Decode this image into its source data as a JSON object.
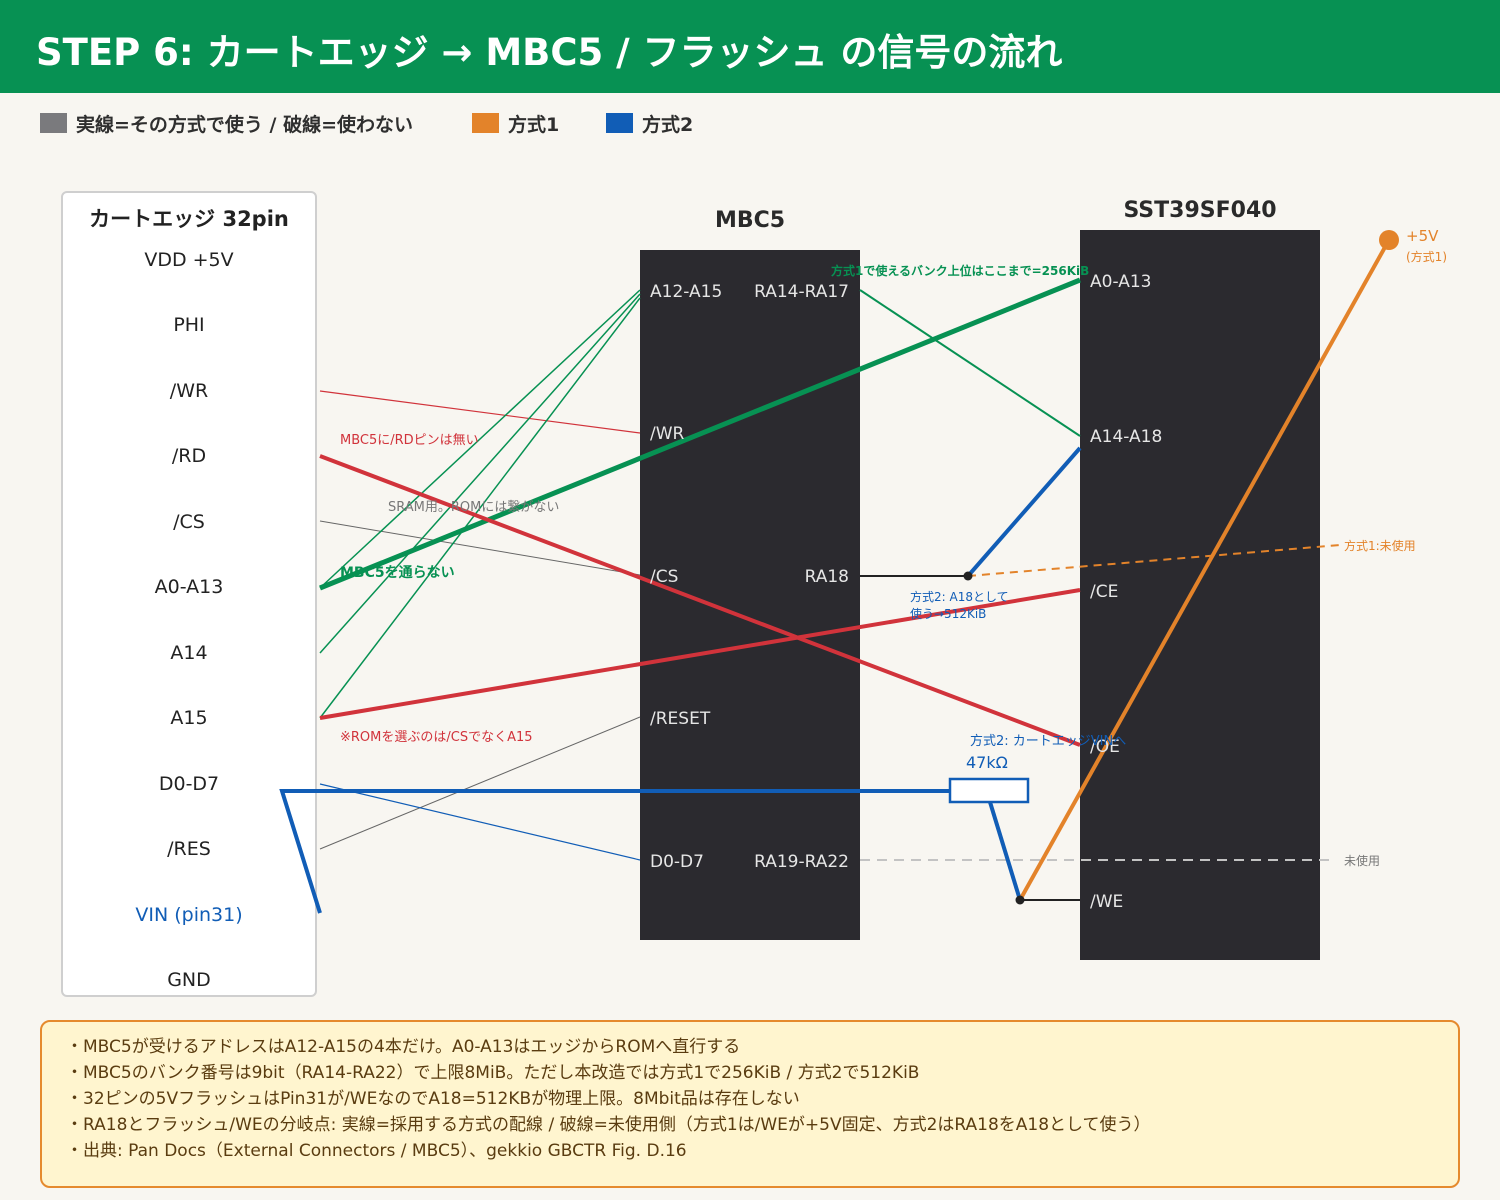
{
  "header": {
    "title": "STEP 6: カートエッジ → MBC5 / フラッシュ の信号の流れ"
  },
  "legend": [
    {
      "label": "実線=その方式で使う / 破線=使わない",
      "color": "#7a7a7d"
    },
    {
      "label": "方式1",
      "color": "#e3832a"
    },
    {
      "label": "方式2",
      "color": "#115db6"
    }
  ],
  "colors": {
    "green": "#079153",
    "red": "#d1333b",
    "blue": "#115db6",
    "orange": "#e3832a",
    "chip": "#2b2a2f",
    "gray": "#777777"
  },
  "cart_edge": {
    "title": "カートエッジ 32pin",
    "pins": [
      "VDD +5V",
      "PHI",
      "/WR",
      "/RD",
      "/CS",
      "A0-A13",
      "A14",
      "A15",
      "D0-D7",
      "/RES",
      "VIN (pin31)",
      "GND"
    ]
  },
  "mbc5": {
    "title": "MBC5",
    "left_pins": [
      "A12-A15",
      "/WR",
      "/CS",
      "/RESET",
      "D0-D7"
    ],
    "right_pins": [
      "RA14-RA17",
      "RA18",
      "RA19-RA22"
    ]
  },
  "flash": {
    "title": "SST39SF040",
    "pins": [
      "A0-A13",
      "A14-A18",
      "/CE",
      "/OE",
      "/WE"
    ]
  },
  "annotations": {
    "bank_limit": "方式1で使えるバンク上位はここまで=256KiB",
    "rd_note": "MBC5に/RDピンは無い",
    "sram_note": "SRAM用。ROMには繋がない",
    "a0_note": "MBC5を通らない",
    "a15_note": "※ROMを選ぶのは/CSでなくA15",
    "mode2_a18_1": "方式2: A18として",
    "mode2_a18_2": "使う→512KiB",
    "mode1_unused": "方式1:未使用",
    "mode2_vin": "方式2: カートエッジVINへ",
    "resistor": "47kΩ",
    "plus5v": "+5V",
    "plus5v_sub": "(方式1)",
    "unused": "未使用"
  },
  "notes": [
    "・MBC5が受けるアドレスはA12-A15の4本だけ。A0-A13はエッジからROMへ直行する",
    "・MBC5のバンク番号は9bit（RA14-RA22）で上限8MiB。ただし本改造では方式1で256KiB / 方式2で512KiB",
    "・32ピンの5VフラッシュはPin31が/WEなのでA18=512KBが物理上限。8Mbit品は存在しない",
    "・RA18とフラッシュ/WEの分岐点: 実線=採用する方式の配線 / 破線=未使用側（方式1は/WEが+5V固定、方式2はRA18をA18として使う）",
    "・出典: Pan Docs（External Connectors / MBC5）、gekkio GBCTR Fig. D.16"
  ]
}
